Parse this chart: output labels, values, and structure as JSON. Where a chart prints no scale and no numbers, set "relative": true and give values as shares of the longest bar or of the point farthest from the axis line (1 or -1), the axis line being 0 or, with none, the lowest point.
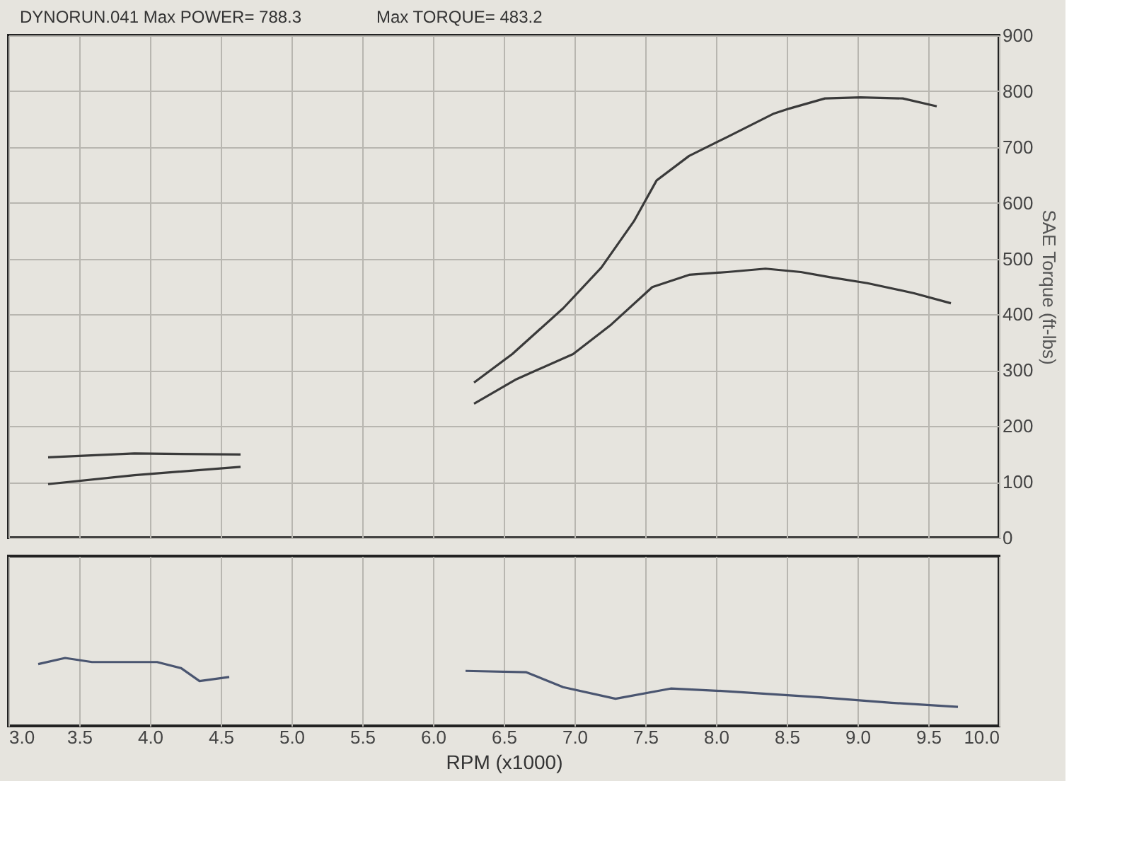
{
  "chart_data": [
    {
      "type": "line",
      "annotations": [
        "DYNORUN.041  Max POWER= 788.3",
        "Max TORQUE= 483.2"
      ],
      "ylabel": "SAE Torque (ft-lbs)",
      "xlim": [
        3.0,
        10.0
      ],
      "ylim": [
        0,
        900
      ],
      "yticks": [
        0,
        100,
        200,
        300,
        400,
        500,
        600,
        700,
        800,
        900
      ],
      "grid": true,
      "tick_labels": "y",
      "series": [
        {
          "color": "#3a3a3a",
          "x": [
            3.28,
            3.89,
            4.64,
            5.5,
            6.29,
            6.56,
            6.92,
            7.19,
            7.42,
            7.58,
            7.81,
            8.08,
            8.41,
            8.52,
            8.77,
            9.02,
            9.32,
            9.56
          ],
          "values": [
            96,
            112,
            127,
            null,
            278,
            329,
            411,
            484,
            567,
            640,
            684,
            718,
            760,
            769,
            787,
            789,
            787,
            773
          ]
        },
        {
          "color": "#3a3a3a",
          "x": [
            3.28,
            3.89,
            4.64,
            5.5,
            6.29,
            6.59,
            6.99,
            7.26,
            7.55,
            7.81,
            8.08,
            8.35,
            8.6,
            8.8,
            9.07,
            9.4,
            9.66
          ],
          "values": [
            144,
            151,
            149,
            null,
            240,
            284,
            329,
            382,
            449,
            471,
            476,
            482,
            476,
            467,
            456,
            438,
            420
          ]
        }
      ]
    },
    {
      "type": "line",
      "relative": true,
      "xlabel": "RPM (x1000)",
      "xlim": [
        3.0,
        10.0
      ],
      "xticks": [
        {
          "value": 3,
          "label": "3.0"
        },
        3.5,
        {
          "value": 4,
          "label": "4.0"
        },
        4.5,
        {
          "value": 5,
          "label": "5.0"
        },
        5.5,
        {
          "value": 6,
          "label": "6.0"
        },
        6.5,
        {
          "value": 7,
          "label": "7.0"
        },
        7.5,
        {
          "value": 8,
          "label": "8.0"
        },
        8.5,
        {
          "value": 9,
          "label": "9.0"
        },
        9.5,
        {
          "value": 10,
          "label": "10.0"
        }
      ],
      "grid": "x",
      "tick_labels": "x",
      "series": [
        {
          "color": "#4a5570",
          "x": [
            3.21,
            3.4,
            3.59,
            4.05,
            4.22,
            4.35,
            4.56,
            5.5,
            6.23,
            6.66,
            6.92,
            7.29,
            7.68,
            8.08,
            8.74,
            9.24,
            9.71
          ],
          "values": [
            0.91,
            1,
            0.94,
            0.94,
            0.85,
            0.66,
            0.72,
            null,
            0.81,
            0.79,
            0.57,
            0.4,
            0.55,
            0.51,
            0.42,
            0.34,
            0.28
          ]
        }
      ]
    }
  ]
}
